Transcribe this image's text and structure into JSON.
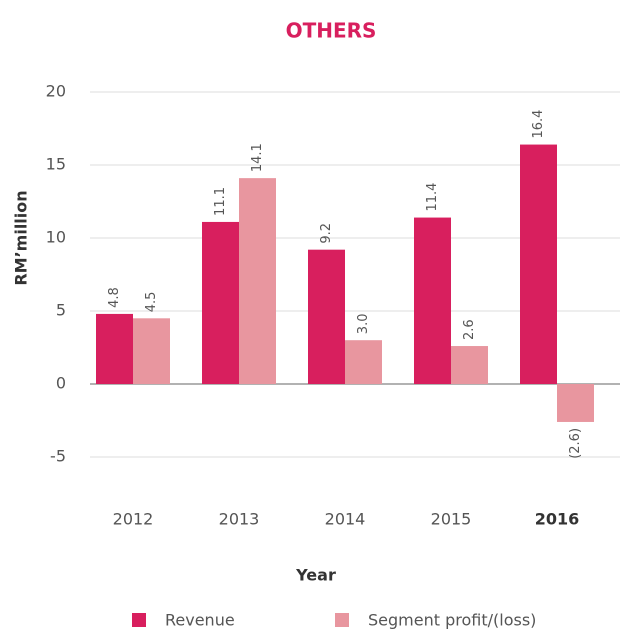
{
  "chart_data": {
    "type": "bar",
    "title": "OTHERS",
    "x_label": "Year",
    "y_label": "RM’million",
    "categories": [
      "2012",
      "2013",
      "2014",
      "2015",
      "2016"
    ],
    "highlight": "2016",
    "series": [
      {
        "name": "Revenue",
        "color": "#d81f5e",
        "values": [
          4.8,
          11.1,
          9.2,
          11.4,
          16.4
        ],
        "value_labels": [
          "4.8",
          "11.1",
          "9.2",
          "11.4",
          "16.4"
        ]
      },
      {
        "name": "Segment profit/(loss)",
        "color": "#e8969f",
        "values": [
          4.5,
          14.1,
          3.0,
          2.6,
          -2.6
        ],
        "value_labels": [
          "4.5",
          "14.1",
          "3.0",
          "2.6",
          "(2.6)"
        ]
      }
    ],
    "ylim": [
      -5,
      20
    ],
    "yticks": [
      -5,
      0,
      5,
      10,
      15,
      20
    ],
    "grid": true
  }
}
